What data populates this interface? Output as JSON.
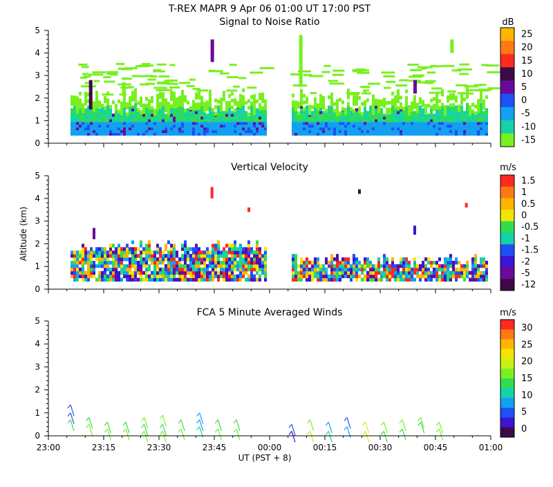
{
  "figure": {
    "title": "T-REX   MAPR   9 Apr 06   01:00 UT   17:00   PST",
    "xlabel": "UT  (PST + 8)",
    "ylabel": "Altitude (km)",
    "x_tick_labels": [
      "23:00",
      "23:15",
      "23:30",
      "23:45",
      "00:00",
      "00:15",
      "00:30",
      "00:45",
      "01:00"
    ],
    "y_tick_labels": [
      "0",
      "1",
      "2",
      "3",
      "4",
      "5"
    ]
  },
  "colors": {
    "palette": [
      "#3c0a46",
      "#6a0a9a",
      "#3c14d2",
      "#1e50f5",
      "#14a0f0",
      "#14d2aa",
      "#32dc50",
      "#78f020",
      "#c8f018",
      "#f0e600",
      "#ffb400",
      "#ff7814",
      "#ff2a1e"
    ]
  },
  "chart_data": [
    {
      "type": "heatmap",
      "title": "Signal to Noise Ratio",
      "unit": "dB",
      "x_range_minutes": [
        0,
        120
      ],
      "y_range_km": [
        0,
        5
      ],
      "colorbar_labels": [
        "25",
        "20",
        "15",
        "10",
        "5",
        "0",
        "-5",
        "-10",
        "-15"
      ],
      "colorbar_colors": [
        "#ffb400",
        "#ff7814",
        "#ff2a1e",
        "#3c0a46",
        "#6a0a9a",
        "#1e50f5",
        "#14a0f0",
        "#14d2aa",
        "#78f020"
      ],
      "data_gap_minutes": [
        59,
        64
      ],
      "description_fields": {
        "surface_layer_top_km": 0.4,
        "boundary_layer_top_km": 2.3,
        "value_range_db": [
          -15,
          25
        ]
      }
    },
    {
      "type": "heatmap",
      "title": "Vertical Velocity",
      "unit": "m/s",
      "x_range_minutes": [
        0,
        120
      ],
      "y_range_km": [
        0,
        5
      ],
      "colorbar_labels": [
        "1.5",
        "1",
        "0.5",
        "0",
        "-0.5",
        "-1",
        "-1.5",
        "-2",
        "-5",
        "-12"
      ],
      "colorbar_colors": [
        "#ff2a1e",
        "#ff7814",
        "#ffb400",
        "#f0e600",
        "#32dc50",
        "#14d2aa",
        "#1e50f5",
        "#3c14d2",
        "#6a0a9a",
        "#3c0a46"
      ],
      "data_gap_minutes": [
        59,
        64
      ],
      "description_fields": {
        "value_range_mps": [
          -12,
          1.5
        ]
      }
    },
    {
      "type": "scatter",
      "title": "FCA 5 Minute Averaged Winds",
      "unit": "m/s",
      "x_range_minutes": [
        0,
        120
      ],
      "y_range_km": [
        0,
        5
      ],
      "colorbar_labels": [
        "30",
        "25",
        "20",
        "15",
        "10",
        "5",
        "0"
      ],
      "colorbar_colors": [
        "#ff2a1e",
        "#ff7814",
        "#ffb400",
        "#f0e600",
        "#c8f018",
        "#78f020",
        "#32dc50",
        "#14d2aa",
        "#14a0f0",
        "#1e50f5",
        "#3c14d2",
        "#3c0a46"
      ],
      "barbs": [
        {
          "t": 6,
          "h": 1.35,
          "speed": 5
        },
        {
          "t": 6,
          "h": 1.0,
          "speed": 5
        },
        {
          "t": 6,
          "h": 0.7,
          "speed": 13
        },
        {
          "t": 11,
          "h": 0.8,
          "speed": 14
        },
        {
          "t": 11,
          "h": 0.5,
          "speed": 15
        },
        {
          "t": 16,
          "h": 0.6,
          "speed": 14
        },
        {
          "t": 16,
          "h": 0.3,
          "speed": 15
        },
        {
          "t": 21,
          "h": 0.6,
          "speed": 14
        },
        {
          "t": 21,
          "h": 0.3,
          "speed": 15
        },
        {
          "t": 26,
          "h": 0.8,
          "speed": 15
        },
        {
          "t": 26,
          "h": 0.5,
          "speed": 14
        },
        {
          "t": 26,
          "h": 0.2,
          "speed": 15
        },
        {
          "t": 31,
          "h": 0.9,
          "speed": 15
        },
        {
          "t": 31,
          "h": 0.5,
          "speed": 14
        },
        {
          "t": 31,
          "h": 0.2,
          "speed": 15
        },
        {
          "t": 36,
          "h": 0.7,
          "speed": 14
        },
        {
          "t": 36,
          "h": 0.3,
          "speed": 15
        },
        {
          "t": 41,
          "h": 1.0,
          "speed": 9
        },
        {
          "t": 41,
          "h": 0.7,
          "speed": 8
        },
        {
          "t": 41,
          "h": 0.4,
          "speed": 12
        },
        {
          "t": 46,
          "h": 0.7,
          "speed": 14
        },
        {
          "t": 46,
          "h": 0.3,
          "speed": 15
        },
        {
          "t": 51,
          "h": 0.7,
          "speed": 14
        },
        {
          "t": 51,
          "h": 0.3,
          "speed": 15
        },
        {
          "t": 66,
          "h": 0.5,
          "speed": 6
        },
        {
          "t": 66,
          "h": 0.2,
          "speed": 4
        },
        {
          "t": 71,
          "h": 0.7,
          "speed": 15
        },
        {
          "t": 71,
          "h": 0.2,
          "speed": 20
        },
        {
          "t": 76,
          "h": 0.6,
          "speed": 8
        },
        {
          "t": 76,
          "h": 0.2,
          "speed": 12
        },
        {
          "t": 81,
          "h": 0.8,
          "speed": 5
        },
        {
          "t": 81,
          "h": 0.4,
          "speed": 8
        },
        {
          "t": 86,
          "h": 0.6,
          "speed": 19
        },
        {
          "t": 86,
          "h": 0.2,
          "speed": 18
        },
        {
          "t": 91,
          "h": 0.6,
          "speed": 15
        },
        {
          "t": 91,
          "h": 0.2,
          "speed": 14
        },
        {
          "t": 96,
          "h": 0.7,
          "speed": 15
        },
        {
          "t": 96,
          "h": 0.3,
          "speed": 14
        },
        {
          "t": 101,
          "h": 0.8,
          "speed": 15
        },
        {
          "t": 101,
          "h": 0.6,
          "speed": 14
        },
        {
          "t": 106,
          "h": 0.6,
          "speed": 15
        },
        {
          "t": 106,
          "h": 0.3,
          "speed": 15
        }
      ]
    }
  ]
}
